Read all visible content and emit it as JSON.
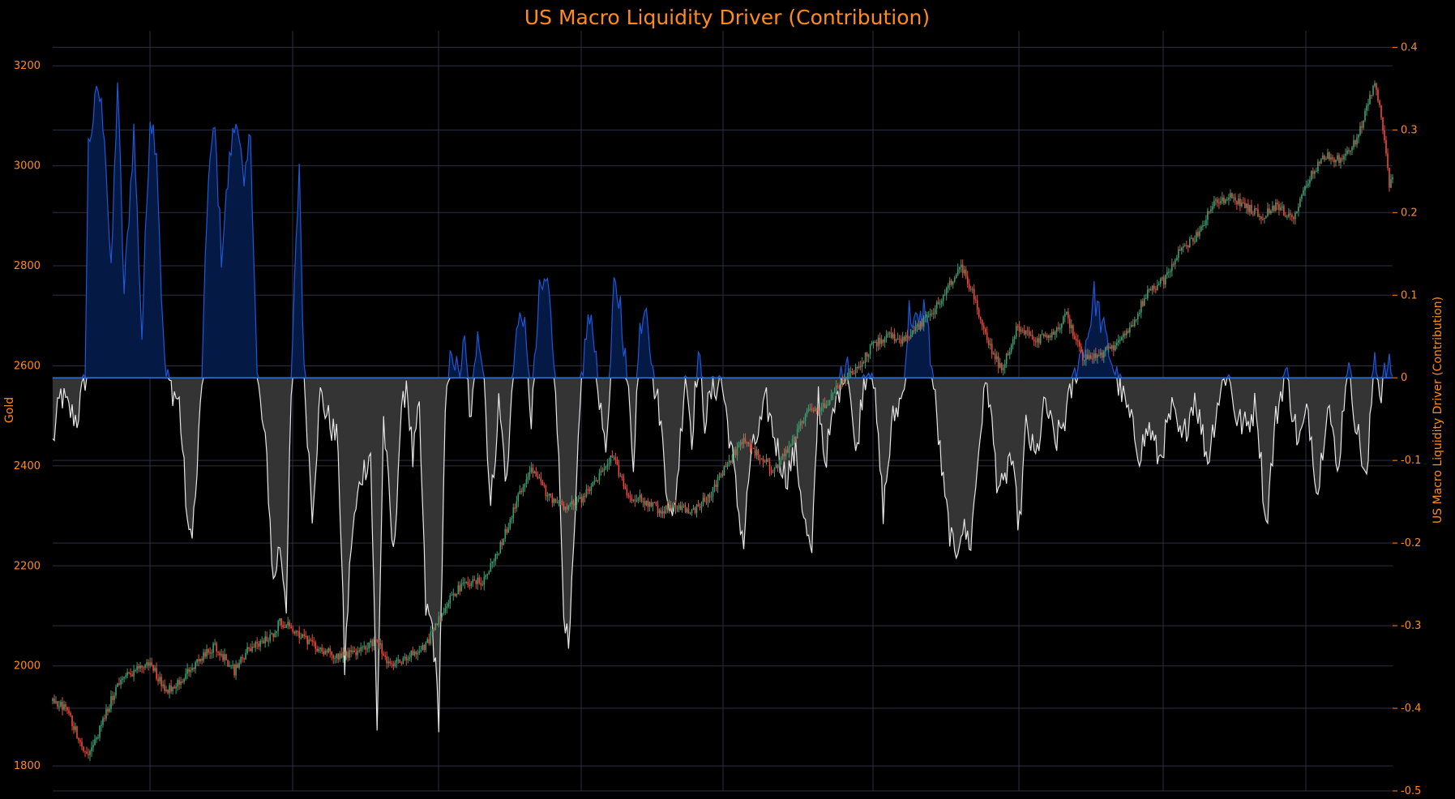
{
  "colors": {
    "background": "#000000",
    "accent": "#ff8c1a",
    "grid": "#2a3142",
    "up_candle": "#3e9f72",
    "down_candle": "#f04a3a",
    "positive_fill": "#041a45",
    "positive_line": "#1f57d6",
    "negative_fill": "#343434",
    "negative_line": "#e6e6e6",
    "zero_line": "#3d6fd4"
  },
  "chart_data": {
    "type": "candlestick + area",
    "title": "US Macro Liquidity Driver (Contribution)",
    "y_left": {
      "label": "Gold",
      "range": [
        1750,
        3270
      ],
      "ticks": [
        1800,
        2000,
        2200,
        2400,
        2600,
        2800,
        3000,
        3200
      ]
    },
    "y_right": {
      "label": "US Macro Liquidity Driver (Contribution)",
      "range": [
        -0.5,
        0.42
      ],
      "ticks": [
        0.4,
        0.3,
        0.2,
        0.1,
        0,
        -0.1,
        -0.2,
        -0.3,
        -0.4,
        -0.5
      ]
    },
    "x_tick_labels": [],
    "grid": "on",
    "gold_close_anchors": [
      [
        0,
        1930
      ],
      [
        8,
        1915
      ],
      [
        20,
        1828
      ],
      [
        24,
        1832
      ],
      [
        30,
        1880
      ],
      [
        40,
        1965
      ],
      [
        50,
        1990
      ],
      [
        60,
        2005
      ],
      [
        70,
        1950
      ],
      [
        80,
        1975
      ],
      [
        90,
        2010
      ],
      [
        100,
        2040
      ],
      [
        112,
        1990
      ],
      [
        120,
        2030
      ],
      [
        135,
        2060
      ],
      [
        140,
        2090
      ],
      [
        150,
        2070
      ],
      [
        160,
        2040
      ],
      [
        175,
        2020
      ],
      [
        190,
        2030
      ],
      [
        200,
        2055
      ],
      [
        207,
        2000
      ],
      [
        215,
        2010
      ],
      [
        230,
        2040
      ],
      [
        245,
        2140
      ],
      [
        255,
        2165
      ],
      [
        265,
        2170
      ],
      [
        275,
        2230
      ],
      [
        285,
        2320
      ],
      [
        295,
        2400
      ],
      [
        305,
        2340
      ],
      [
        315,
        2320
      ],
      [
        325,
        2330
      ],
      [
        335,
        2370
      ],
      [
        345,
        2420
      ],
      [
        355,
        2340
      ],
      [
        365,
        2330
      ],
      [
        375,
        2310
      ],
      [
        385,
        2320
      ],
      [
        395,
        2310
      ],
      [
        405,
        2340
      ],
      [
        415,
        2400
      ],
      [
        425,
        2450
      ],
      [
        435,
        2420
      ],
      [
        445,
        2390
      ],
      [
        455,
        2440
      ],
      [
        465,
        2510
      ],
      [
        475,
        2520
      ],
      [
        485,
        2560
      ],
      [
        495,
        2590
      ],
      [
        505,
        2640
      ],
      [
        515,
        2660
      ],
      [
        525,
        2650
      ],
      [
        535,
        2680
      ],
      [
        545,
        2720
      ],
      [
        552,
        2760
      ],
      [
        560,
        2800
      ],
      [
        568,
        2740
      ],
      [
        575,
        2660
      ],
      [
        585,
        2590
      ],
      [
        595,
        2680
      ],
      [
        605,
        2650
      ],
      [
        615,
        2660
      ],
      [
        625,
        2700
      ],
      [
        635,
        2620
      ],
      [
        645,
        2620
      ],
      [
        655,
        2640
      ],
      [
        665,
        2680
      ],
      [
        675,
        2750
      ],
      [
        685,
        2770
      ],
      [
        695,
        2830
      ],
      [
        705,
        2860
      ],
      [
        715,
        2920
      ],
      [
        725,
        2940
      ],
      [
        735,
        2920
      ],
      [
        745,
        2900
      ],
      [
        755,
        2920
      ],
      [
        765,
        2890
      ],
      [
        775,
        2980
      ],
      [
        785,
        3020
      ],
      [
        795,
        3010
      ],
      [
        805,
        3060
      ],
      [
        810,
        3120
      ],
      [
        815,
        3160
      ],
      [
        819,
        3100
      ],
      [
        824,
        2960
      ],
      [
        826,
        2980
      ]
    ],
    "liquidity_driver_anchors": [
      [
        0,
        -0.08
      ],
      [
        5,
        -0.02
      ],
      [
        10,
        -0.04
      ],
      [
        15,
        -0.05
      ],
      [
        20,
        0
      ],
      [
        22,
        0.28
      ],
      [
        28,
        0.35
      ],
      [
        32,
        0.3
      ],
      [
        36,
        0.12
      ],
      [
        40,
        0.36
      ],
      [
        44,
        0.1
      ],
      [
        50,
        0.3
      ],
      [
        55,
        0.05
      ],
      [
        60,
        0.32
      ],
      [
        64,
        0.28
      ],
      [
        68,
        0.05
      ],
      [
        70,
        0
      ],
      [
        78,
        -0.03
      ],
      [
        84,
        -0.2
      ],
      [
        88,
        -0.15
      ],
      [
        92,
        0
      ],
      [
        96,
        0.25
      ],
      [
        100,
        0.3
      ],
      [
        104,
        0.15
      ],
      [
        110,
        0.28
      ],
      [
        114,
        0.32
      ],
      [
        118,
        0.22
      ],
      [
        122,
        0.3
      ],
      [
        126,
        0
      ],
      [
        132,
        -0.1
      ],
      [
        136,
        -0.25
      ],
      [
        140,
        -0.2
      ],
      [
        144,
        -0.27
      ],
      [
        148,
        0.05
      ],
      [
        152,
        0.26
      ],
      [
        155,
        0
      ],
      [
        160,
        -0.16
      ],
      [
        165,
        -0.02
      ],
      [
        170,
        -0.05
      ],
      [
        176,
        -0.08
      ],
      [
        180,
        -0.35
      ],
      [
        184,
        -0.2
      ],
      [
        190,
        -0.12
      ],
      [
        196,
        -0.09
      ],
      [
        200,
        -0.43
      ],
      [
        204,
        -0.05
      ],
      [
        210,
        -0.22
      ],
      [
        214,
        -0.07
      ],
      [
        218,
        0
      ],
      [
        222,
        -0.1
      ],
      [
        226,
        -0.04
      ],
      [
        230,
        -0.28
      ],
      [
        234,
        -0.3
      ],
      [
        238,
        -0.41
      ],
      [
        242,
        -0.05
      ],
      [
        246,
        0.04
      ],
      [
        250,
        0
      ],
      [
        254,
        0.04
      ],
      [
        258,
        -0.06
      ],
      [
        262,
        0.07
      ],
      [
        266,
        0
      ],
      [
        270,
        -0.16
      ],
      [
        275,
        -0.03
      ],
      [
        280,
        -0.13
      ],
      [
        285,
        0.05
      ],
      [
        290,
        0.08
      ],
      [
        295,
        -0.05
      ],
      [
        300,
        0.1
      ],
      [
        305,
        0.12
      ],
      [
        310,
        0
      ],
      [
        315,
        -0.27
      ],
      [
        318,
        -0.34
      ],
      [
        322,
        -0.18
      ],
      [
        326,
        0
      ],
      [
        330,
        0.07
      ],
      [
        334,
        0.05
      ],
      [
        338,
        -0.05
      ],
      [
        342,
        -0.08
      ],
      [
        346,
        0.11
      ],
      [
        350,
        0.09
      ],
      [
        354,
        0
      ],
      [
        358,
        -0.1
      ],
      [
        362,
        0.06
      ],
      [
        366,
        0.1
      ],
      [
        370,
        0
      ],
      [
        374,
        -0.04
      ],
      [
        378,
        -0.12
      ],
      [
        382,
        -0.18
      ],
      [
        386,
        -0.1
      ],
      [
        390,
        0.01
      ],
      [
        394,
        -0.07
      ],
      [
        398,
        0.03
      ],
      [
        402,
        -0.05
      ],
      [
        406,
        -0.02
      ],
      [
        412,
        0
      ],
      [
        418,
        -0.08
      ],
      [
        422,
        -0.15
      ],
      [
        426,
        -0.2
      ],
      [
        430,
        -0.1
      ],
      [
        436,
        -0.06
      ],
      [
        440,
        -0.03
      ],
      [
        446,
        -0.08
      ],
      [
        452,
        -0.12
      ],
      [
        458,
        -0.09
      ],
      [
        464,
        -0.18
      ],
      [
        468,
        -0.22
      ],
      [
        472,
        -0.02
      ],
      [
        476,
        -0.1
      ],
      [
        480,
        -0.06
      ],
      [
        484,
        -0.02
      ],
      [
        490,
        0.03
      ],
      [
        495,
        -0.1
      ],
      [
        500,
        0
      ],
      [
        505,
        0.02
      ],
      [
        512,
        -0.16
      ],
      [
        518,
        -0.05
      ],
      [
        524,
        -0.02
      ],
      [
        528,
        0.08
      ],
      [
        534,
        0.06
      ],
      [
        538,
        0.09
      ],
      [
        542,
        0.01
      ],
      [
        546,
        -0.07
      ],
      [
        550,
        -0.15
      ],
      [
        556,
        -0.22
      ],
      [
        560,
        -0.18
      ],
      [
        566,
        -0.2
      ],
      [
        572,
        -0.06
      ],
      [
        576,
        0
      ],
      [
        582,
        -0.12
      ],
      [
        586,
        -0.14
      ],
      [
        590,
        -0.09
      ],
      [
        596,
        -0.18
      ],
      [
        600,
        -0.06
      ],
      [
        606,
        -0.1
      ],
      [
        612,
        -0.03
      ],
      [
        618,
        -0.08
      ],
      [
        624,
        -0.05
      ],
      [
        632,
        0.02
      ],
      [
        638,
        0.05
      ],
      [
        642,
        0.1
      ],
      [
        646,
        0.07
      ],
      [
        650,
        0.04
      ],
      [
        656,
        0
      ],
      [
        664,
        -0.05
      ],
      [
        670,
        -0.09
      ],
      [
        676,
        -0.06
      ],
      [
        682,
        -0.1
      ],
      [
        690,
        -0.04
      ],
      [
        696,
        -0.08
      ],
      [
        704,
        -0.02
      ],
      [
        712,
        -0.1
      ],
      [
        718,
        -0.03
      ],
      [
        724,
        0.01
      ],
      [
        730,
        -0.05
      ],
      [
        736,
        -0.06
      ],
      [
        742,
        -0.03
      ],
      [
        748,
        -0.18
      ],
      [
        754,
        -0.05
      ],
      [
        760,
        0.01
      ],
      [
        768,
        -0.08
      ],
      [
        774,
        -0.04
      ],
      [
        780,
        -0.14
      ],
      [
        786,
        -0.02
      ],
      [
        792,
        -0.12
      ],
      [
        798,
        0.02
      ],
      [
        804,
        -0.06
      ],
      [
        810,
        -0.13
      ],
      [
        815,
        0.04
      ],
      [
        818,
        -0.02
      ],
      [
        822,
        0.01
      ]
    ]
  }
}
